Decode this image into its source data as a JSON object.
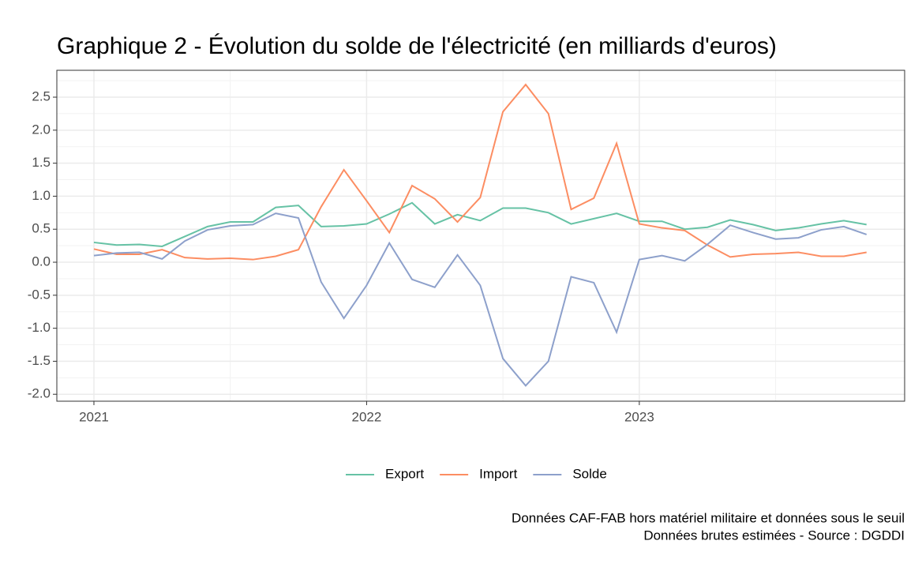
{
  "chart_data": {
    "type": "line",
    "title": "Graphique 2 - Évolution du solde de l'électricité (en milliards d'euros)",
    "caption": [
      "Données CAF-FAB hors matériel militaire et données sous le seuil",
      "Données brutes estimées - Source : DGDDI"
    ],
    "x": [
      2021,
      2021.0833,
      2021.1667,
      2021.25,
      2021.3333,
      2021.4167,
      2021.5,
      2021.5833,
      2021.6667,
      2021.75,
      2021.8333,
      2021.9167,
      2022,
      2022.0833,
      2022.1667,
      2022.25,
      2022.3333,
      2022.4167,
      2022.5,
      2022.5833,
      2022.6667,
      2022.75,
      2022.8333,
      2022.9167,
      2023,
      2023.0833,
      2023.1667,
      2023.25,
      2023.3333,
      2023.4167,
      2023.5,
      2023.5833,
      2023.6667,
      2023.75,
      2023.8333
    ],
    "series": [
      {
        "name": "Export",
        "color": "#66c2a5",
        "values": [
          0.3,
          0.26,
          0.27,
          0.24,
          0.39,
          0.54,
          0.61,
          0.61,
          0.83,
          0.86,
          0.54,
          0.55,
          0.58,
          0.73,
          0.9,
          0.58,
          0.72,
          0.63,
          0.82,
          0.82,
          0.75,
          0.58,
          0.66,
          0.74,
          0.62,
          0.62,
          0.5,
          0.53,
          0.64,
          0.57,
          0.48,
          0.52,
          0.58,
          0.63,
          0.57
        ]
      },
      {
        "name": "Import",
        "color": "#fc8d62",
        "values": [
          0.2,
          0.12,
          0.12,
          0.19,
          0.07,
          0.05,
          0.06,
          0.04,
          0.09,
          0.19,
          0.84,
          1.4,
          0.93,
          0.45,
          1.16,
          0.96,
          0.61,
          0.98,
          2.28,
          2.69,
          2.25,
          0.8,
          0.97,
          1.8,
          0.58,
          0.52,
          0.48,
          0.26,
          0.08,
          0.12,
          0.13,
          0.15,
          0.09,
          0.09,
          0.15
        ]
      },
      {
        "name": "Solde",
        "color": "#8da0cb",
        "values": [
          0.1,
          0.14,
          0.15,
          0.05,
          0.32,
          0.49,
          0.55,
          0.57,
          0.74,
          0.67,
          -0.3,
          -0.85,
          -0.35,
          0.29,
          -0.26,
          -0.38,
          0.11,
          -0.35,
          -1.46,
          -1.87,
          -1.5,
          -0.22,
          -0.31,
          -1.06,
          0.04,
          0.1,
          0.02,
          0.27,
          0.56,
          0.45,
          0.35,
          0.37,
          0.49,
          0.54,
          0.42
        ]
      }
    ],
    "xlim": [
      2020.864,
      2023.973
    ],
    "xticks": [
      2021,
      2022,
      2023
    ],
    "ylim": [
      -2.105,
      2.907
    ],
    "yticks": [
      {
        "value": -2,
        "label": "-2.0"
      },
      -1.5,
      {
        "value": -1,
        "label": "-1.0"
      },
      -0.5,
      {
        "value": 0,
        "label": "0.0"
      },
      0.5,
      {
        "value": 1,
        "label": "1.0"
      },
      1.5,
      {
        "value": 2,
        "label": "2.0"
      },
      2.5
    ],
    "grid": true,
    "legend": "bottom"
  }
}
